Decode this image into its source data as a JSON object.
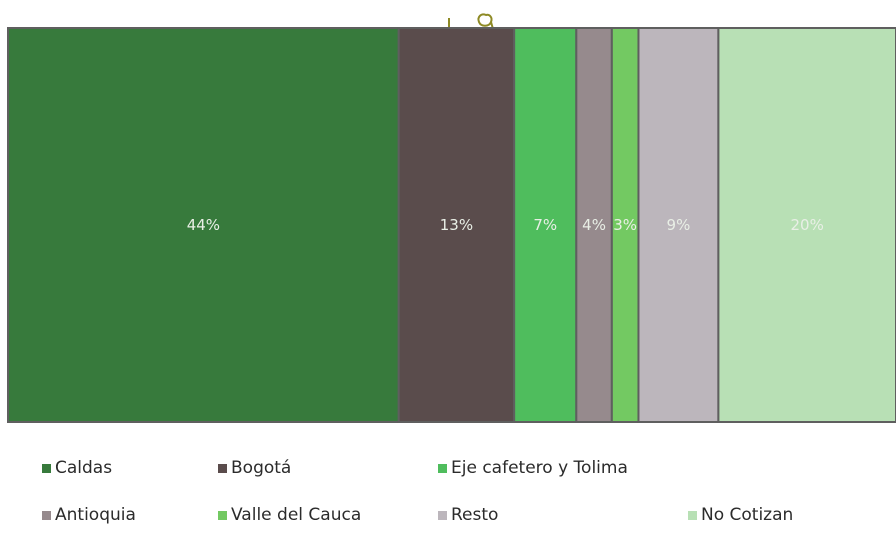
{
  "chart_data": {
    "type": "bar",
    "title": "",
    "xlabel": "",
    "ylabel": "",
    "ylim": [
      0,
      100
    ],
    "grid": false,
    "legend_position": "bottom",
    "series": [
      {
        "name": "Caldas",
        "value": 44,
        "label": "44%",
        "color": "#377a3c"
      },
      {
        "name": "Bogotá",
        "value": 13,
        "label": "13%",
        "color": "#5a4c4c"
      },
      {
        "name": "Eje cafetero y Tolima",
        "value": 7,
        "label": "7%",
        "color": "#4fbd5d"
      },
      {
        "name": "Antioquia",
        "value": 4,
        "label": "4%",
        "color": "#968a8d"
      },
      {
        "name": "Valle del Cauca",
        "value": 3,
        "label": "3%",
        "color": "#73c962"
      },
      {
        "name": "Resto",
        "value": 9,
        "label": "9%",
        "color": "#bcb6bc"
      },
      {
        "name": "No Cotizan",
        "value": 20,
        "label": "20%",
        "color": "#b8e0b5"
      }
    ]
  }
}
